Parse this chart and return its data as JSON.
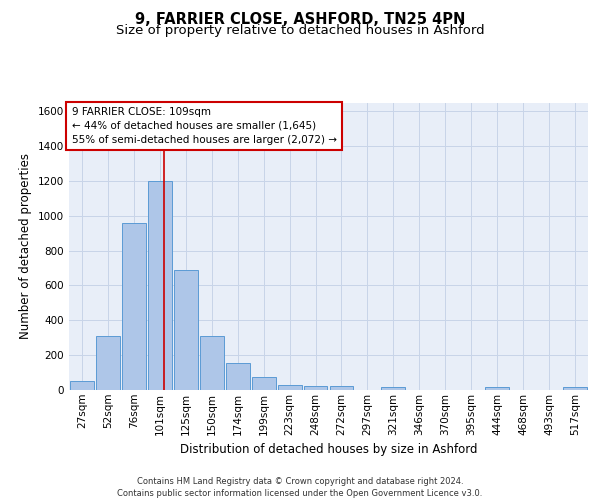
{
  "title1": "9, FARRIER CLOSE, ASHFORD, TN25 4PN",
  "title2": "Size of property relative to detached houses in Ashford",
  "xlabel": "Distribution of detached houses by size in Ashford",
  "ylabel": "Number of detached properties",
  "footer": "Contains HM Land Registry data © Crown copyright and database right 2024.\nContains public sector information licensed under the Open Government Licence v3.0.",
  "annotation_line1": "9 FARRIER CLOSE: 109sqm",
  "annotation_line2": "← 44% of detached houses are smaller (1,645)",
  "annotation_line3": "55% of semi-detached houses are larger (2,072) →",
  "bar_color": "#aec6e8",
  "bar_edge_color": "#5b9bd5",
  "vline_color": "#cc0000",
  "annotation_box_color": "#cc0000",
  "grid_color": "#c8d4e8",
  "bg_color": "#e8eef8",
  "bin_labels": [
    "27sqm",
    "52sqm",
    "76sqm",
    "101sqm",
    "125sqm",
    "150sqm",
    "174sqm",
    "199sqm",
    "223sqm",
    "248sqm",
    "272sqm",
    "297sqm",
    "321sqm",
    "346sqm",
    "370sqm",
    "395sqm",
    "444sqm",
    "468sqm",
    "493sqm",
    "517sqm"
  ],
  "bar_heights": [
    50,
    310,
    960,
    1200,
    690,
    310,
    155,
    75,
    30,
    25,
    25,
    0,
    20,
    0,
    0,
    0,
    20,
    0,
    0,
    20
  ],
  "ylim": [
    0,
    1650
  ],
  "yticks": [
    0,
    200,
    400,
    600,
    800,
    1000,
    1200,
    1400,
    1600
  ],
  "vline_x": 3.18,
  "title_fontsize": 10.5,
  "subtitle_fontsize": 9.5,
  "axis_label_fontsize": 8.5,
  "tick_fontsize": 7.5,
  "annotation_fontsize": 7.5,
  "footer_fontsize": 6.0
}
